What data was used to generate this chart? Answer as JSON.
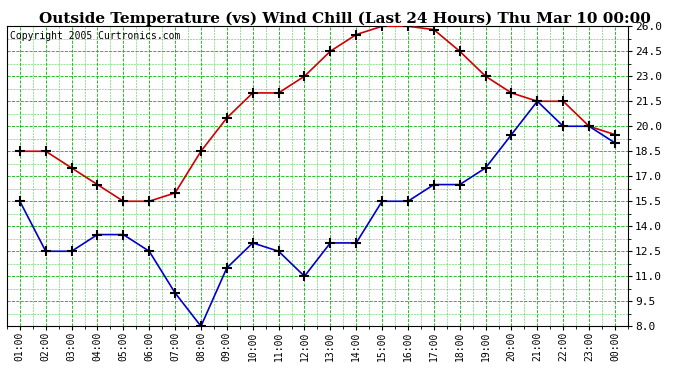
{
  "title": "Outside Temperature (vs) Wind Chill (Last 24 Hours) Thu Mar 10 00:00",
  "copyright": "Copyright 2005 Curtronics.com",
  "x_labels": [
    "01:00",
    "02:00",
    "03:00",
    "04:00",
    "05:00",
    "06:00",
    "07:00",
    "08:00",
    "09:00",
    "10:00",
    "11:00",
    "12:00",
    "13:00",
    "14:00",
    "15:00",
    "16:00",
    "17:00",
    "18:00",
    "19:00",
    "20:00",
    "21:00",
    "22:00",
    "23:00",
    "00:00"
  ],
  "red_data": [
    18.5,
    18.5,
    17.5,
    16.5,
    15.5,
    15.5,
    16.0,
    18.5,
    20.5,
    22.0,
    22.0,
    23.0,
    24.5,
    25.5,
    26.0,
    26.0,
    25.8,
    24.5,
    23.0,
    22.0,
    21.5,
    21.5,
    20.0,
    19.5
  ],
  "blue_data": [
    15.5,
    12.5,
    12.5,
    13.5,
    13.5,
    12.5,
    10.0,
    8.0,
    11.5,
    13.0,
    12.5,
    11.0,
    13.0,
    13.0,
    15.5,
    15.5,
    16.5,
    16.5,
    17.5,
    19.5,
    21.5,
    20.0,
    20.0,
    19.0
  ],
  "red_color": "#cc0000",
  "blue_color": "#0000cc",
  "bg_color": "#ffffff",
  "plot_bg_color": "#ffffff",
  "grid_color": "#00bb00",
  "ylim": [
    8.0,
    26.0
  ],
  "yticks": [
    8.0,
    9.5,
    11.0,
    12.5,
    14.0,
    15.5,
    17.0,
    18.5,
    20.0,
    21.5,
    23.0,
    24.5,
    26.0
  ],
  "title_fontsize": 11,
  "copyright_fontsize": 7,
  "marker": "+",
  "marker_color": "#000000",
  "line_width": 1.2,
  "marker_size": 7,
  "marker_edge_width": 1.5
}
